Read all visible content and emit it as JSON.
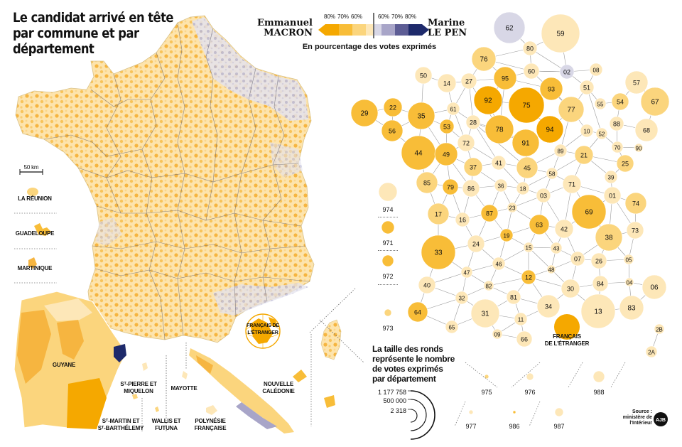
{
  "title": {
    "line1": "Le candidat arrivé en tête",
    "line2": "par commune et par département"
  },
  "legend": {
    "left_candidate": {
      "first": "Emmanuel",
      "last": "MACRON",
      "color": "#f5a800"
    },
    "right_candidate": {
      "first": "Marine",
      "last": "LE PEN",
      "color": "#1e2a6b"
    },
    "left_pcts": [
      "80%",
      "70%",
      "60%"
    ],
    "right_pcts": [
      "60%",
      "70%",
      "80%"
    ],
    "left_colors": [
      "#f5a800",
      "#f8bd38",
      "#fbd57d",
      "#fde7b8"
    ],
    "right_colors": [
      "#d8d7e6",
      "#a8a5c8",
      "#5d5d95",
      "#1e2a6b"
    ],
    "subtitle": "En pourcentage des votes exprimés"
  },
  "scale_bar": "50 km",
  "overseas_labels": {
    "reunion": "LA RÉUNION",
    "guadeloupe": "GUADELOUPE",
    "martinique": "MARTINIQUE",
    "guyane": "GUYANE",
    "spm": [
      "Sᵀ-PIERRE ET",
      "MIQUELON"
    ],
    "mayotte": "MAYOTTE",
    "stmartin": [
      "Sᵀ-MARTIN ET",
      "Sᵀ-BARTHÉLEMY"
    ],
    "wallis": [
      "WALLIS ET",
      "FUTUNA"
    ],
    "polynesie": [
      "POLYNÉSIE",
      "FRANÇAISE"
    ],
    "caledonie": [
      "NOUVELLE",
      "CALÉDONIE"
    ],
    "etranger": [
      "FRANÇAIS DE",
      "L'ÉTRANGER"
    ]
  },
  "bubbles_note": [
    "La taille des ronds",
    "représente le nombre",
    "de votes exprimés",
    "par département"
  ],
  "scale_values": [
    "1 177 758",
    "500 000",
    "2 318"
  ],
  "source": [
    "Source :",
    "ministère de",
    "l'Intérieur"
  ],
  "logo_text": "AJB",
  "colors": {
    "c1": "#f5a800",
    "c2": "#f8bd38",
    "c3": "#fbd57d",
    "c4": "#fde7b8",
    "l1": "#d8d7e6",
    "l2": "#a8a5c8"
  },
  "departments": [
    {
      "id": "62",
      "c": "l1"
    },
    {
      "id": "59",
      "c": "c4"
    },
    {
      "id": "80",
      "c": "c4"
    },
    {
      "id": "76",
      "c": "c3"
    },
    {
      "id": "60",
      "c": "c4"
    },
    {
      "id": "02",
      "c": "l1"
    },
    {
      "id": "08",
      "c": "c4"
    },
    {
      "id": "50",
      "c": "c4"
    },
    {
      "id": "14",
      "c": "c4"
    },
    {
      "id": "27",
      "c": "c4"
    },
    {
      "id": "95",
      "c": "c2"
    },
    {
      "id": "93",
      "c": "c2"
    },
    {
      "id": "51",
      "c": "c4"
    },
    {
      "id": "57",
      "c": "c4"
    },
    {
      "id": "29",
      "c": "c2"
    },
    {
      "id": "22",
      "c": "c2"
    },
    {
      "id": "35",
      "c": "c2"
    },
    {
      "id": "61",
      "c": "c4"
    },
    {
      "id": "92",
      "c": "c1"
    },
    {
      "id": "75",
      "c": "c1"
    },
    {
      "id": "77",
      "c": "c3"
    },
    {
      "id": "55",
      "c": "c4"
    },
    {
      "id": "54",
      "c": "c3"
    },
    {
      "id": "67",
      "c": "c3"
    },
    {
      "id": "56",
      "c": "c2"
    },
    {
      "id": "53",
      "c": "c2"
    },
    {
      "id": "28",
      "c": "c4"
    },
    {
      "id": "78",
      "c": "c2"
    },
    {
      "id": "94",
      "c": "c1"
    },
    {
      "id": "10",
      "c": "c4"
    },
    {
      "id": "52",
      "c": "c4"
    },
    {
      "id": "88",
      "c": "c4"
    },
    {
      "id": "68",
      "c": "c4"
    },
    {
      "id": "72",
      "c": "c4"
    },
    {
      "id": "91",
      "c": "c2"
    },
    {
      "id": "70",
      "c": "c4"
    },
    {
      "id": "90",
      "c": "c4"
    },
    {
      "id": "44",
      "c": "c2"
    },
    {
      "id": "49",
      "c": "c2"
    },
    {
      "id": "89",
      "c": "c4"
    },
    {
      "id": "21",
      "c": "c3"
    },
    {
      "id": "37",
      "c": "c3"
    },
    {
      "id": "41",
      "c": "c4"
    },
    {
      "id": "45",
      "c": "c3"
    },
    {
      "id": "25",
      "c": "c3"
    },
    {
      "id": "58",
      "c": "c4"
    },
    {
      "id": "39",
      "c": "c4"
    },
    {
      "id": "85",
      "c": "c3"
    },
    {
      "id": "79",
      "c": "c2"
    },
    {
      "id": "86",
      "c": "c4"
    },
    {
      "id": "36",
      "c": "c4"
    },
    {
      "id": "18",
      "c": "c4"
    },
    {
      "id": "03",
      "c": "c4"
    },
    {
      "id": "71",
      "c": "c4"
    },
    {
      "id": "01",
      "c": "c4"
    },
    {
      "id": "74",
      "c": "c3"
    },
    {
      "id": "17",
      "c": "c3"
    },
    {
      "id": "16",
      "c": "c4"
    },
    {
      "id": "87",
      "c": "c2"
    },
    {
      "id": "23",
      "c": "c4"
    },
    {
      "id": "69",
      "c": "c2"
    },
    {
      "id": "63",
      "c": "c2"
    },
    {
      "id": "42",
      "c": "c4"
    },
    {
      "id": "73",
      "c": "c4"
    },
    {
      "id": "38",
      "c": "c3"
    },
    {
      "id": "19",
      "c": "c2"
    },
    {
      "id": "24",
      "c": "c4"
    },
    {
      "id": "33",
      "c": "c2"
    },
    {
      "id": "15",
      "c": "c4"
    },
    {
      "id": "43",
      "c": "c4"
    },
    {
      "id": "46",
      "c": "c4"
    },
    {
      "id": "07",
      "c": "c4"
    },
    {
      "id": "26",
      "c": "c4"
    },
    {
      "id": "05",
      "c": "c4"
    },
    {
      "id": "47",
      "c": "c4"
    },
    {
      "id": "48",
      "c": "c4"
    },
    {
      "id": "12",
      "c": "c2"
    },
    {
      "id": "40",
      "c": "c4"
    },
    {
      "id": "82",
      "c": "c4"
    },
    {
      "id": "84",
      "c": "c4"
    },
    {
      "id": "04",
      "c": "c4"
    },
    {
      "id": "06",
      "c": "c4"
    },
    {
      "id": "32",
      "c": "c4"
    },
    {
      "id": "81",
      "c": "c4"
    },
    {
      "id": "30",
      "c": "c4"
    },
    {
      "id": "64",
      "c": "c2"
    },
    {
      "id": "31",
      "c": "c4"
    },
    {
      "id": "34",
      "c": "c4"
    },
    {
      "id": "13",
      "c": "c4"
    },
    {
      "id": "83",
      "c": "c4"
    },
    {
      "id": "65",
      "c": "c4"
    },
    {
      "id": "11",
      "c": "c4"
    },
    {
      "id": "09",
      "c": "c4"
    },
    {
      "id": "66",
      "c": "c4"
    },
    {
      "id": "2B",
      "c": "c4"
    },
    {
      "id": "2A",
      "c": "c4"
    },
    {
      "id": "974",
      "c": "c4"
    },
    {
      "id": "971",
      "c": "c2"
    },
    {
      "id": "972",
      "c": "c2"
    },
    {
      "id": "973",
      "c": "c3"
    },
    {
      "id": "975",
      "c": "c3"
    },
    {
      "id": "976",
      "c": "c4"
    },
    {
      "id": "988",
      "c": "c4"
    },
    {
      "id": "977",
      "c": "c4"
    },
    {
      "id": "986",
      "c": "c2"
    },
    {
      "id": "987",
      "c": "c4"
    }
  ],
  "abroad_bubble": {
    "label": [
      "FRANÇAIS",
      "DE L'ÉTRANGER"
    ],
    "c": "c1"
  }
}
